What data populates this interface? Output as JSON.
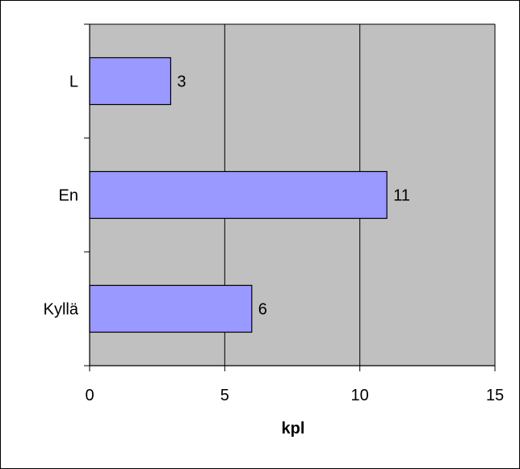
{
  "chart_data": {
    "type": "bar",
    "orientation": "horizontal",
    "categories": [
      "L",
      "En",
      "Kyllä"
    ],
    "values": [
      3,
      11,
      6
    ],
    "data_labels": [
      "3",
      "11",
      "6"
    ],
    "xlabel": "kpl",
    "ylabel": "",
    "xlim": [
      0,
      15
    ],
    "x_ticks": [
      "0",
      "5",
      "10",
      "15"
    ],
    "grid": true,
    "legend": "none",
    "colors": {
      "bar_fill": "#9999ff",
      "plot_background": "#c0c0c0",
      "gridline": "#000000",
      "border": "#000000"
    }
  }
}
